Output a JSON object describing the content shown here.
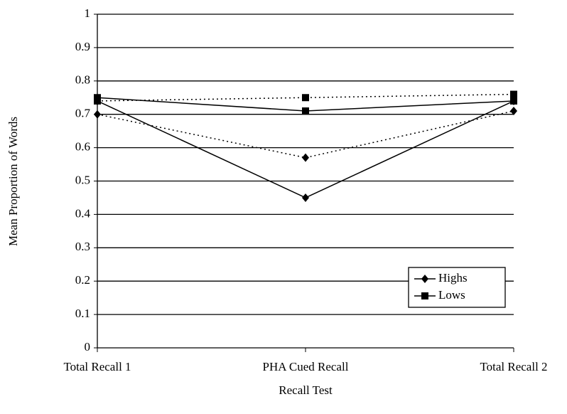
{
  "chart_data": {
    "type": "line",
    "x_label": "Recall Test",
    "y_label": "Mean Proportion of Words",
    "categories": [
      "Total Recall 1",
      "PHA Cued Recall",
      "Total Recall 2"
    ],
    "series": [
      {
        "name": "Highs",
        "color": "#000000",
        "marker": "diamond",
        "dash": false,
        "values": [
          0.74,
          0.45,
          0.74
        ]
      },
      {
        "name": "Lows",
        "color": "#000000",
        "marker": "square",
        "dash": false,
        "values": [
          0.75,
          0.71,
          0.74
        ]
      },
      {
        "color": "#000000",
        "marker": "diamond",
        "dash": true,
        "values": [
          0.7,
          0.57,
          0.71
        ]
      },
      {
        "color": "#000000",
        "marker": "square",
        "dash": true,
        "values": [
          0.74,
          0.75,
          0.76
        ]
      }
    ],
    "ylim": [
      0,
      1
    ],
    "yticks": [
      0,
      0.1,
      0.2,
      0.3,
      0.4,
      0.5,
      0.6,
      0.7,
      0.8,
      0.9,
      1
    ],
    "grid": true,
    "legend": "lower right"
  }
}
